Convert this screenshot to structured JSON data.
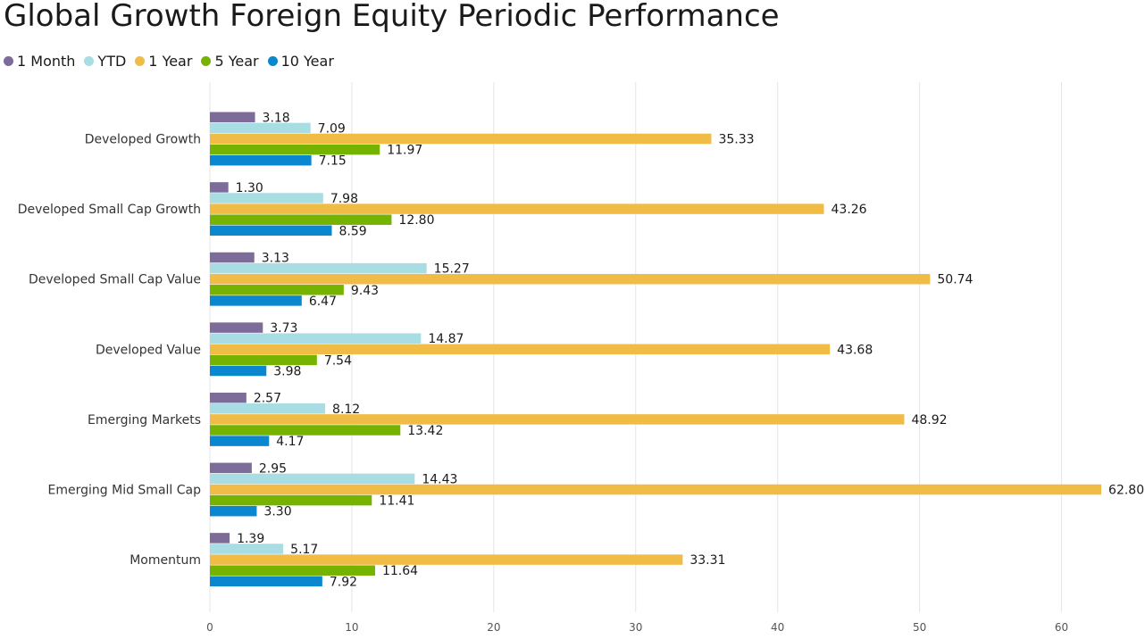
{
  "title": "Global Growth Foreign Equity Periodic Performance",
  "chart_data": {
    "type": "bar",
    "orientation": "horizontal",
    "title": "Global Growth Foreign Equity Periodic Performance",
    "xlabel": "",
    "ylabel": "",
    "categories": [
      "Developed Growth",
      "Developed Small Cap Growth",
      "Developed Small Cap Value",
      "Developed Value",
      "Emerging Markets",
      "Emerging Mid Small Cap",
      "Momentum"
    ],
    "series": [
      {
        "name": "1 Month",
        "color": "#7d6b9a",
        "values": [
          3.18,
          1.3,
          3.13,
          3.73,
          2.57,
          2.95,
          1.39
        ]
      },
      {
        "name": "YTD",
        "color": "#a8dde3",
        "values": [
          7.09,
          7.98,
          15.27,
          14.87,
          8.12,
          14.43,
          5.17
        ]
      },
      {
        "name": "1 Year",
        "color": "#f0bc46",
        "values": [
          35.33,
          43.26,
          50.74,
          43.68,
          48.92,
          62.8,
          33.31
        ]
      },
      {
        "name": "5 Year",
        "color": "#76b300",
        "values": [
          11.97,
          12.8,
          9.43,
          7.54,
          13.42,
          11.41,
          11.64
        ]
      },
      {
        "name": "10 Year",
        "color": "#0a87cf",
        "values": [
          7.15,
          8.59,
          6.47,
          3.98,
          4.17,
          3.3,
          7.92
        ]
      }
    ],
    "xlim": [
      0,
      65
    ],
    "ticks": [
      0,
      10,
      20,
      30,
      40,
      50,
      60
    ],
    "grid": true,
    "legend_position": "top-left",
    "data_labels": true
  }
}
